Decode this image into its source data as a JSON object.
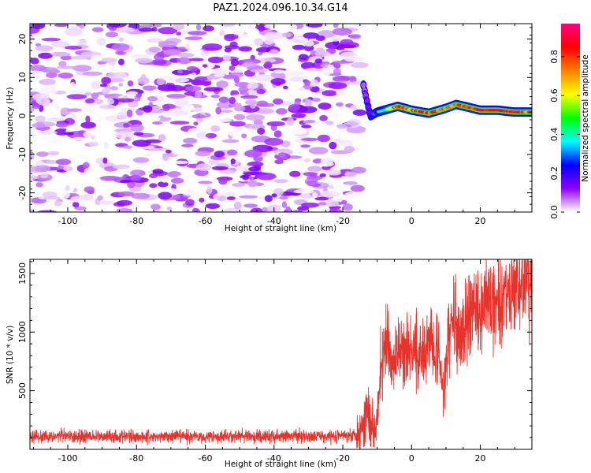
{
  "title": "PAZ1.2024.096.10.34.G14",
  "chart_data": [
    {
      "type": "heatmap",
      "xlabel": "Height of straight line (km)",
      "ylabel": "Frequency (Hz)",
      "xlim": [
        -111,
        35
      ],
      "ylim": [
        -25,
        24
      ],
      "xticks": [
        -100,
        -80,
        -60,
        -40,
        -20,
        0,
        20
      ],
      "yticks": [
        20,
        10,
        0,
        -10,
        -20
      ],
      "colorbar": {
        "label": "Normalized spectral amplitude",
        "range": [
          0,
          0.97
        ],
        "ticks": [
          0.0,
          0.2,
          0.4,
          0.6,
          0.8
        ],
        "colormap": [
          "#ffffff",
          "#8f00ff",
          "#0000ff",
          "#00ffff",
          "#00ff00",
          "#ffff00",
          "#ff8000",
          "#ff0000",
          "#ff0080"
        ]
      },
      "series": [
        {
          "values": {
            "noise_region_x": [
              -111,
              -15
            ],
            "noise_amplitude_range": [
              0.0,
              0.15
            ],
            "signal_track": [
              {
                "x": -14,
                "freq": 8,
                "amp": 0.1
              },
              {
                "x": -12,
                "freq": 0,
                "amp": 0.25
              },
              {
                "x": -10,
                "freq": 1,
                "amp": 0.3
              },
              {
                "x": -6,
                "freq": 2,
                "amp": 0.6
              },
              {
                "x": -4,
                "freq": 2.5,
                "amp": 0.85
              },
              {
                "x": 0,
                "freq": 1.5,
                "amp": 0.75
              },
              {
                "x": 5,
                "freq": 0.7,
                "amp": 0.8
              },
              {
                "x": 10,
                "freq": 2,
                "amp": 0.7
              },
              {
                "x": 13,
                "freq": 3,
                "amp": 0.8
              },
              {
                "x": 20,
                "freq": 1.5,
                "amp": 0.85
              },
              {
                "x": 25,
                "freq": 1.5,
                "amp": 0.9
              },
              {
                "x": 30,
                "freq": 1,
                "amp": 0.85
              },
              {
                "x": 35,
                "freq": 1,
                "amp": 0.75
              }
            ]
          }
        }
      ]
    },
    {
      "type": "line",
      "xlabel": "Height of straight line (km)",
      "ylabel": "SNR (10 * v/v)",
      "xlim": [
        -111,
        35
      ],
      "ylim": [
        0,
        1620
      ],
      "xticks": [
        -100,
        -80,
        -60,
        -40,
        -20,
        0,
        20
      ],
      "yticks": [
        500,
        1000,
        1500
      ],
      "color": "#e8332d",
      "series": [
        {
          "x": [
            -111,
            -100,
            -90,
            -80,
            -70,
            -60,
            -50,
            -40,
            -30,
            -20,
            -16,
            -14,
            -13,
            -12,
            -11,
            -10,
            -9,
            -8,
            -7,
            -6,
            -5,
            -4,
            -3,
            -2,
            0,
            2,
            4,
            6,
            8,
            9,
            10,
            11,
            12,
            13,
            14,
            16,
            18,
            20,
            22,
            24,
            26,
            28,
            30,
            32,
            35
          ],
          "values": [
            110,
            110,
            110,
            110,
            110,
            110,
            110,
            110,
            110,
            115,
            130,
            200,
            400,
            250,
            150,
            350,
            650,
            900,
            850,
            700,
            750,
            800,
            850,
            780,
            850,
            820,
            880,
            950,
            800,
            500,
            650,
            1000,
            1150,
            1050,
            900,
            1100,
            1200,
            1200,
            1250,
            1250,
            1300,
            1350,
            1350,
            1400,
            1400
          ]
        }
      ]
    }
  ]
}
